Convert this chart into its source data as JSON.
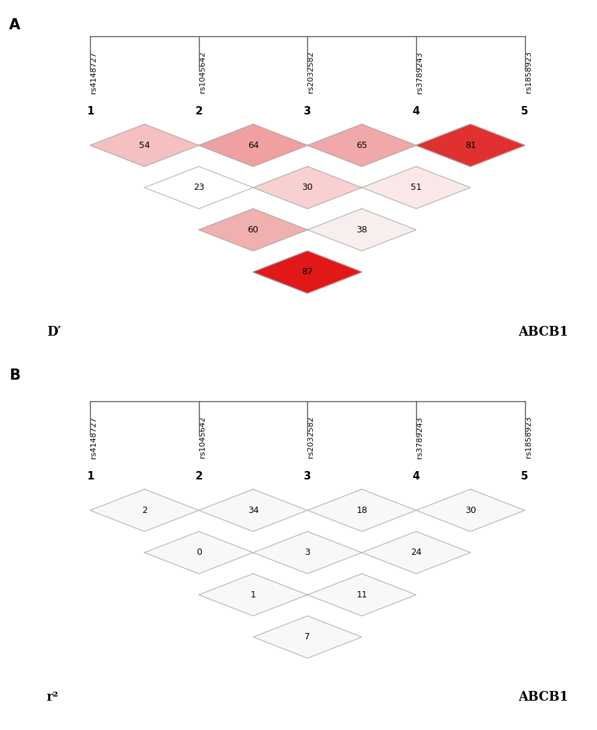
{
  "snp_labels": [
    "rs4148727",
    "rs1045642",
    "rs2032582",
    "rs3789243",
    "rs1858923"
  ],
  "snp_numbers": [
    "1",
    "2",
    "3",
    "4",
    "5"
  ],
  "panel_A_label": "D′",
  "panel_B_label": "r²",
  "gene_label": "ABCB1",
  "background_color": "#c8c8c8",
  "diamond_border_color": "#aaaaaa",
  "panel_A_values": {
    "row0": [
      54,
      64,
      65,
      81
    ],
    "row1": [
      23,
      30,
      51
    ],
    "row2": [
      60,
      38
    ],
    "row3": [
      87
    ]
  },
  "panel_B_values": {
    "row0": [
      2,
      34,
      18,
      30
    ],
    "row1": [
      0,
      3,
      24
    ],
    "row2": [
      1,
      11
    ],
    "row3": [
      7
    ]
  },
  "panel_A_colors": {
    "row0": [
      "#f5c0c0",
      "#f0a0a0",
      "#f0a8a8",
      "#e03030"
    ],
    "row1": [
      "#ffffff",
      "#f8d0d0",
      "#fae8e8"
    ],
    "row2": [
      "#f0b0b0",
      "#f8eeee"
    ],
    "row3": [
      "#e01818"
    ]
  },
  "panel_B_colors": {
    "row0": [
      "#f8f8f8",
      "#f8f8f8",
      "#f8f8f8",
      "#f8f8f8"
    ],
    "row1": [
      "#f8f8f8",
      "#f8f8f8",
      "#f8f8f8"
    ],
    "row2": [
      "#f8f8f8",
      "#f8f8f8"
    ],
    "row3": [
      "#f8f8f8"
    ]
  },
  "fig_width": 8.55,
  "fig_height": 10.46
}
